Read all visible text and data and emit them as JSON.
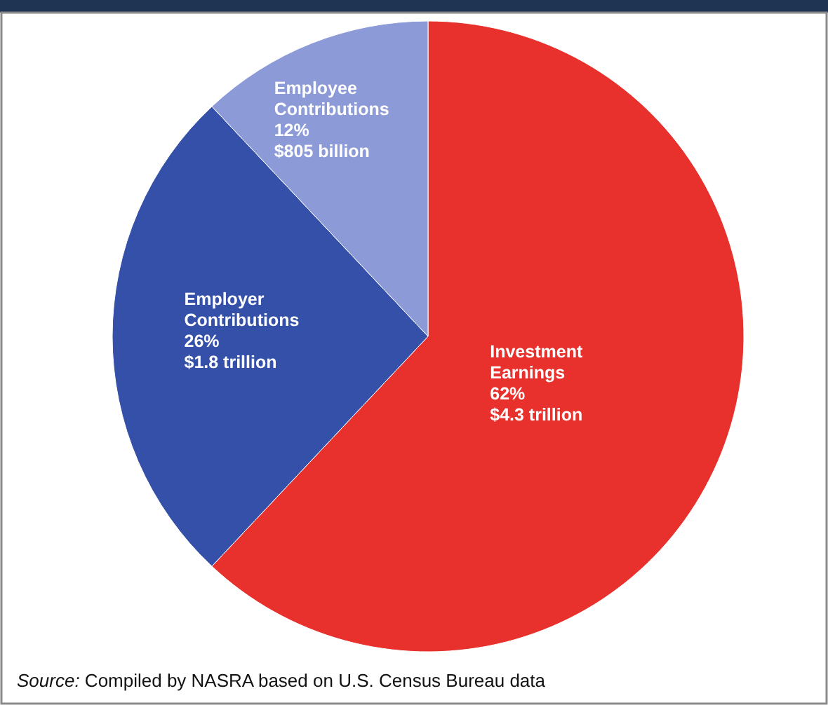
{
  "chart_data": {
    "type": "pie",
    "categories": [
      "Investment Earnings",
      "Employer Contributions",
      "Employee Contributions"
    ],
    "values": [
      62,
      26,
      12
    ],
    "colors": [
      "#e8302c",
      "#3450a8",
      "#8c9bd8"
    ],
    "value_labels": [
      "62%\n$4.3 trillion",
      "26%\n$1.8 trillion",
      "12%\n$805 billion"
    ],
    "annotations": [
      "Source: Compiled by NASRA based on U.S. Census Bureau data"
    ]
  }
}
